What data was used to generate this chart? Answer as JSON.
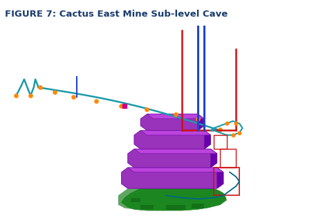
{
  "title": "FIGURE 7: Cactus East Mine Sub-level Cave",
  "title_color": "#1a3c6e",
  "title_fontsize": 9.5,
  "bg_color": "#ffffff",
  "border_color": "#aaaaaa",
  "fig_width": 4.8,
  "fig_height": 3.12,
  "dpi": 100,
  "tunnel_color": "#1a9aaa",
  "orange_dot_color": "#ff8800",
  "blue_shaft_color": "#2244cc",
  "red_shaft_color": "#cc1111",
  "purple_color": "#9933bb",
  "purple_dark": "#7711aa",
  "purple_side": "#6600aa",
  "green_color": "#229922",
  "green_dark": "#116611"
}
